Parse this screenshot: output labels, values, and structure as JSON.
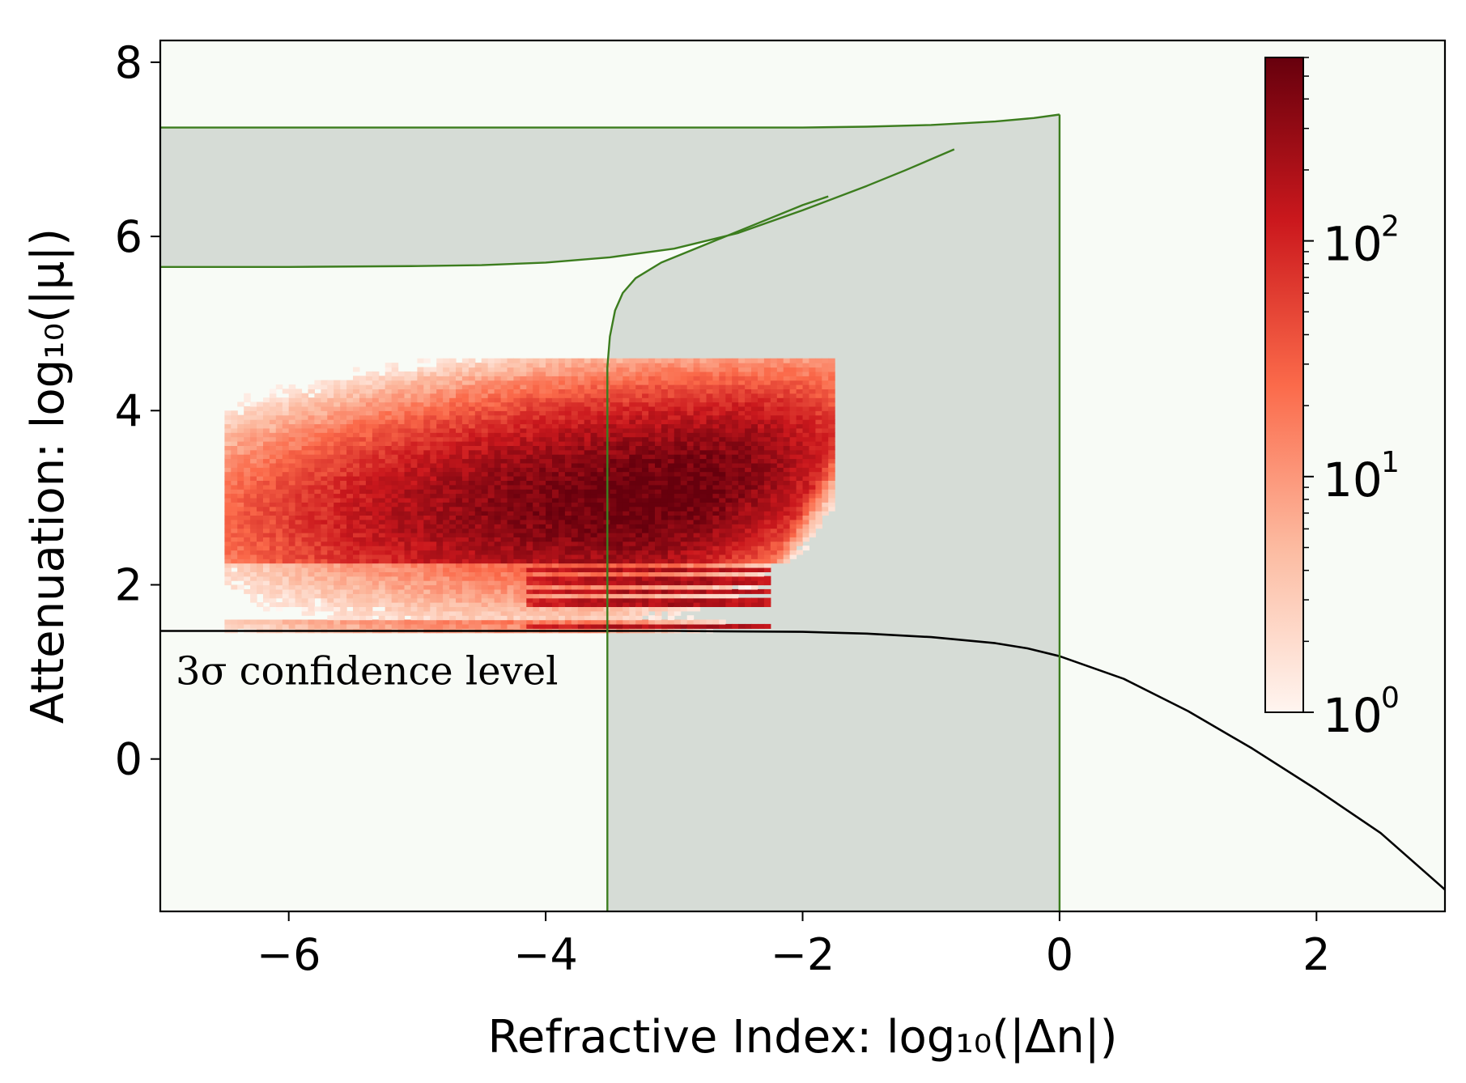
{
  "chart_data": {
    "type": "heatmap",
    "title": "",
    "xlabel": "Refractive Index: log₁₀(|Δn|)",
    "ylabel": "Attenuation: log₁₀(|μ|)",
    "xlim": [
      -7,
      3
    ],
    "ylim": [
      -1.75,
      8.25
    ],
    "xticks": [
      -6,
      -4,
      -2,
      0,
      2
    ],
    "xtick_labels": [
      "−6",
      "−4",
      "−2",
      "0",
      "2"
    ],
    "yticks": [
      0,
      2,
      4,
      6,
      8
    ],
    "ytick_labels": [
      "0",
      "2",
      "4",
      "6",
      "8"
    ],
    "grid": false,
    "background_color": "#f8fbf6",
    "annotation": {
      "text": "3σ confidence level",
      "x": -6.88,
      "y": 0.95
    },
    "colorbar": {
      "scale": "log",
      "min": 1,
      "max": 600,
      "ticks": [
        1,
        10,
        100
      ],
      "tick_base": [
        "10",
        "10",
        "10"
      ],
      "tick_exponents": [
        "0",
        "1",
        "2"
      ],
      "colormap": [
        "#fff5f0",
        "#fcbba1",
        "#fb6a4a",
        "#cb181d",
        "#67000d"
      ]
    },
    "series": [
      {
        "name": "3σ confidence level",
        "kind": "line",
        "color": "#000000",
        "x": [
          -7,
          -5,
          -3,
          -2,
          -1.5,
          -1,
          -0.5,
          -0.25,
          0,
          0.5,
          1,
          1.5,
          2,
          2.5,
          3
        ],
        "y": [
          1.47,
          1.47,
          1.47,
          1.46,
          1.44,
          1.4,
          1.33,
          1.27,
          1.18,
          0.92,
          0.55,
          0.12,
          -0.35,
          -0.85,
          -1.5
        ]
      },
      {
        "name": "green region upper boundary",
        "kind": "region",
        "color": "#3c7d1e",
        "fill": "#d6dcd6",
        "x": [
          -7,
          -6,
          -5,
          -4,
          -3,
          -2,
          -1.5,
          -1,
          -0.5,
          -0.2,
          0
        ],
        "y": [
          7.25,
          7.25,
          7.25,
          7.25,
          7.25,
          7.25,
          7.26,
          7.28,
          7.32,
          7.36,
          7.4
        ]
      },
      {
        "name": "green region lower boundary (left)",
        "kind": "line",
        "color": "#3c7d1e",
        "x": [
          -7,
          -6,
          -5,
          -4.5,
          -4,
          -3.5,
          -3,
          -2.5,
          -2,
          -1.5,
          -1.2,
          -0.82
        ],
        "y": [
          5.65,
          5.65,
          5.66,
          5.67,
          5.7,
          5.76,
          5.86,
          6.04,
          6.3,
          6.58,
          6.76,
          7.0
        ]
      },
      {
        "name": "green region lower boundary (right)",
        "kind": "line",
        "color": "#3c7d1e",
        "x": [
          -3.52,
          -3.52,
          -3.5,
          -3.46,
          -3.4,
          -3.3,
          -3.1,
          -2.8,
          -2.4,
          -2.0,
          -1.8
        ],
        "y": [
          -1.75,
          4.5,
          4.85,
          5.15,
          5.35,
          5.52,
          5.7,
          5.88,
          6.12,
          6.36,
          6.46
        ]
      },
      {
        "name": "green region right edge",
        "kind": "line",
        "color": "#3c7d1e",
        "x": [
          0,
          0
        ],
        "y": [
          -1.75,
          7.4
        ]
      }
    ],
    "heatmap": {
      "description": "2D histogram of counts",
      "x_range": [
        -6.5,
        -1.8
      ],
      "y_range": [
        1.45,
        4.55
      ],
      "peak": {
        "x": -3.1,
        "y": 3.0,
        "count": 600
      },
      "bands_y": [
        1.5,
        1.78,
        1.9,
        2.03,
        2.15
      ]
    }
  }
}
